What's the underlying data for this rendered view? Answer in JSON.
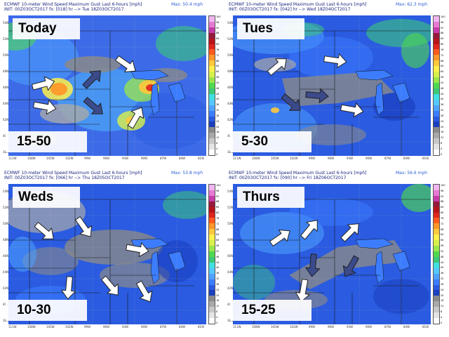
{
  "colors": {
    "scale": [
      "#ffffff",
      "#e4e4e4",
      "#c8c8c8",
      "#a9a9a9",
      "#8a8a8a",
      "#1a3fbf",
      "#2a5be0",
      "#3c7dff",
      "#4fa3ff",
      "#55c8ff",
      "#40e0e0",
      "#3cc878",
      "#4fd84f",
      "#9be64b",
      "#d8f04a",
      "#fff04a",
      "#ffc83c",
      "#ff9628",
      "#ff5a1e",
      "#e0241e",
      "#b8141a",
      "#961a3c",
      "#c83caa",
      "#e67ad2",
      "#f0b4f0"
    ],
    "land_base": "#3d6be8",
    "arrow_fill": "#ffffff",
    "arrow_dark": "#3a4a8a"
  },
  "lat_labels": [
    "54N",
    "52N",
    "50N",
    "48N",
    "46N",
    "44N",
    "42N",
    "40N",
    "38N"
  ],
  "lon_labels": [
    "111W",
    "108W",
    "105W",
    "102W",
    "99W",
    "96W",
    "93W",
    "90W",
    "87W",
    "84W",
    "81W"
  ],
  "cb_ticks": [
    "0",
    "4",
    "8",
    "12",
    "16",
    "20",
    "24",
    "28",
    "32",
    "36",
    "40",
    "44",
    "48",
    "52",
    "56",
    "60",
    "64",
    "68",
    "72",
    "76",
    "80",
    "84",
    "88",
    "92",
    "96",
    "100"
  ],
  "panels": [
    {
      "header_line1": "ECMWF 10-meter Wind Speed Maximum Gust Last 6-hours [mph]",
      "header_line2": "INIT: 00Z03OCT2017 fx: [018] hr --> Tue 18Z03OCT2017",
      "max_text": "Max: 50.4 mph",
      "day": "Today",
      "range": "15-50"
    },
    {
      "header_line1": "ECMWF 10-meter Wind Speed Maximum Gust Last 6-hours [mph]",
      "header_line2": "INIT: 00Z03OCT2017 fx: [042] hr --> Wed 18Z04OCT2017",
      "max_text": "Max: 62.3 mph",
      "day": "Tues",
      "range": "5-30"
    },
    {
      "header_line1": "ECMWF 10-meter Wind Speed Maximum Gust Last 6-hours [mph]",
      "header_line2": "INIT: 00Z03OCT2017 fx: [066] hr --> Thu 18Z05OCT2017",
      "max_text": "Max: 53.8 mph",
      "day": "Weds",
      "range": "10-30"
    },
    {
      "header_line1": "ECMWF 10-meter Wind Speed Maximum Gust Last 6-hours [mph]",
      "header_line2": "INIT: 00Z03OCT2017 fx: [090] hr --> Fri 18Z06OCT2017",
      "max_text": "Max: 56.6 mph",
      "day": "Thurs",
      "range": "15-25"
    }
  ]
}
